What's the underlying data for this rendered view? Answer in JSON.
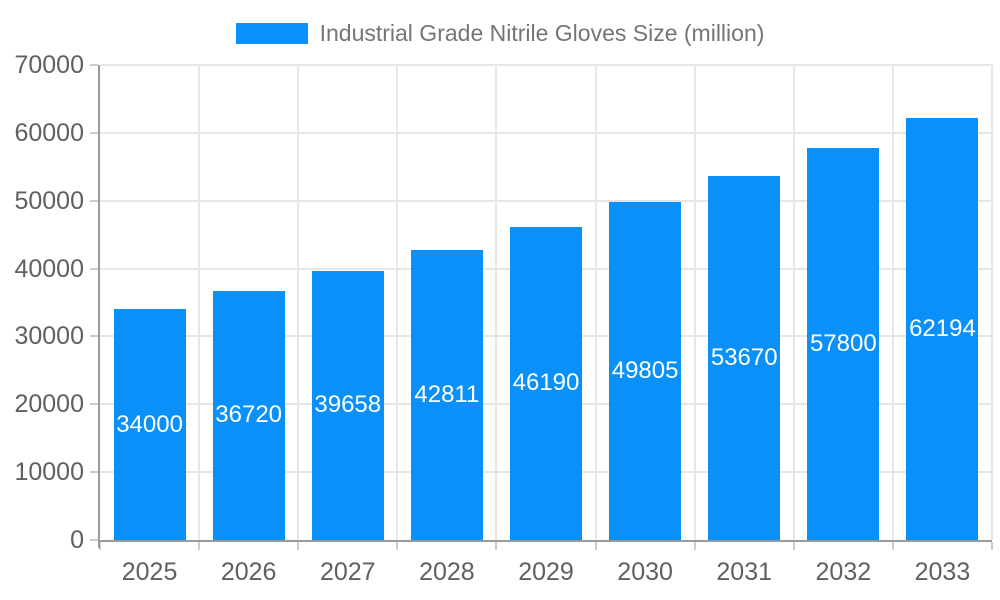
{
  "chart_data": {
    "type": "bar",
    "title": "",
    "series_name": "Industrial Grade Nitrile Gloves Size (million)",
    "categories": [
      "2025",
      "2026",
      "2027",
      "2028",
      "2029",
      "2030",
      "2031",
      "2032",
      "2033"
    ],
    "values": [
      34000,
      36720,
      39658,
      42811,
      46190,
      49805,
      53670,
      57800,
      62194
    ],
    "xlabel": "",
    "ylabel": "",
    "ylim": [
      0,
      70000
    ],
    "y_tick_labels": [
      "0",
      "10000",
      "20000",
      "30000",
      "40000",
      "50000",
      "60000",
      "70000"
    ],
    "grid": true,
    "value_labels": "inside-center",
    "legend_position": "top-center",
    "colors": {
      "bar": "#0A90F9",
      "value_label_text": "#FFFFFF",
      "axis_text": "#606060",
      "legend_text": "#757575",
      "gridline": "#E6E6E6",
      "axis_line": "#9A9A9A",
      "tick_mark": "#CCCCCC",
      "background": "#FFFFFF"
    }
  }
}
